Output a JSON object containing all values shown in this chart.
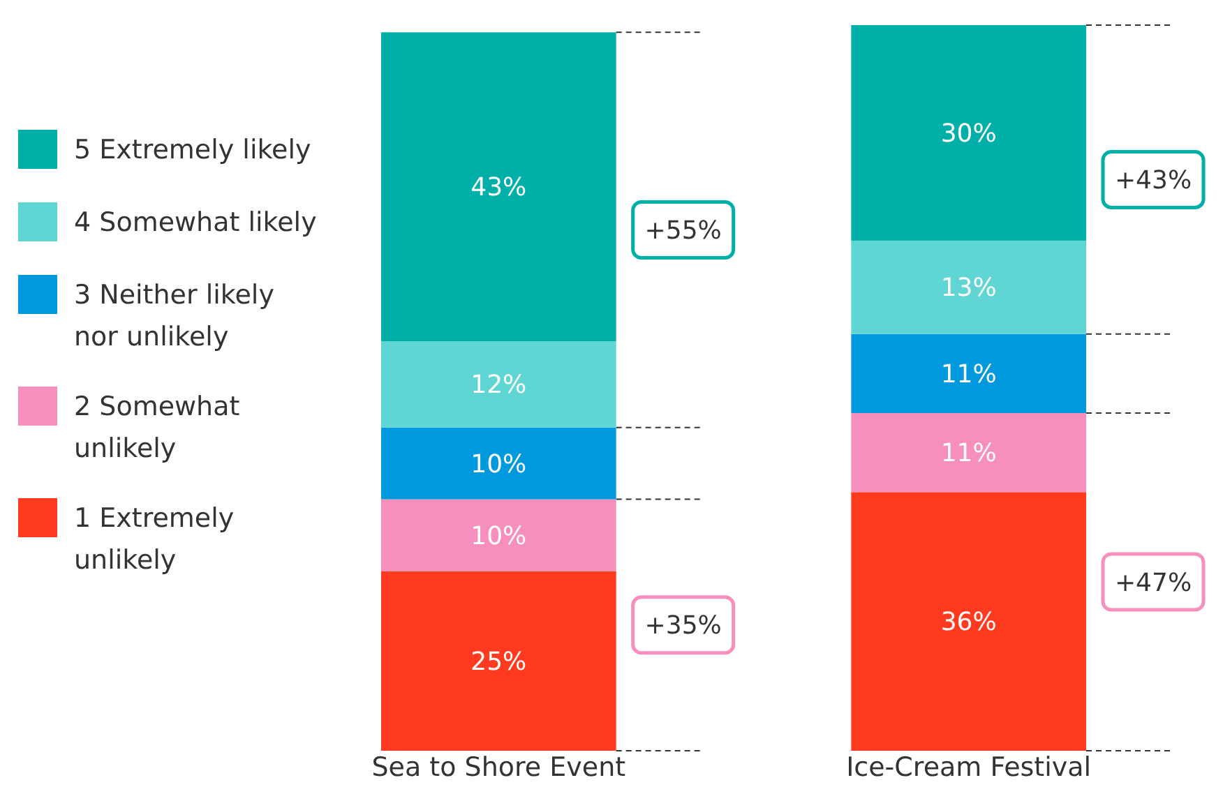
{
  "chart_data": {
    "type": "bar",
    "stacked": true,
    "relative": false,
    "categories": [
      "Sea to Shore Event",
      "Ice-Cream Festival"
    ],
    "series": [
      {
        "name": "1 Extremely unlikely",
        "color": "#ff3a1f",
        "values": [
          25,
          36
        ],
        "value_labels": [
          "25%",
          "36%"
        ]
      },
      {
        "name": "2 Somewhat unlikely",
        "color": "#f78fbd",
        "values": [
          10,
          11
        ],
        "value_labels": [
          "10%",
          "11%"
        ]
      },
      {
        "name": "3 Neither likely nor unlikely",
        "color": "#0099dd",
        "values": [
          10,
          11
        ],
        "value_labels": [
          "10%",
          "11%"
        ]
      },
      {
        "name": "4 Somewhat likely",
        "color": "#5fd6d3",
        "values": [
          12,
          13
        ],
        "value_labels": [
          "12%",
          "13%"
        ]
      },
      {
        "name": "5 Extremely likely",
        "color": "#00b0a8",
        "values": [
          43,
          30
        ],
        "value_labels": [
          "43%",
          "30%"
        ]
      }
    ],
    "legend": "left",
    "annotations": [
      "+55%",
      "+35%",
      "+43%",
      "+47%"
    ]
  }
}
